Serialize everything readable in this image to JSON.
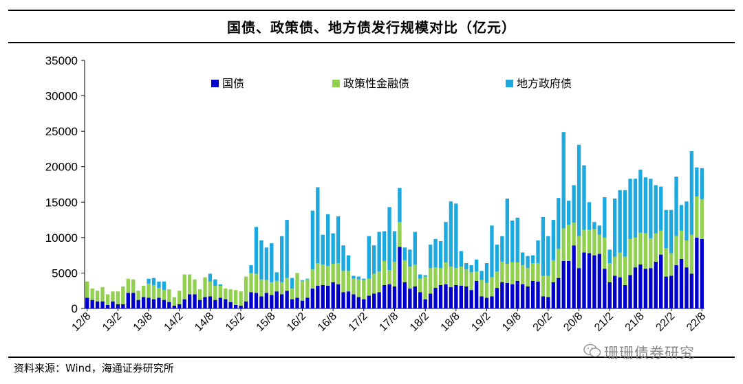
{
  "title": "国债、政策债、地方债发行规模对比（亿元）",
  "source": "资料来源：Wind，海通证券研究所",
  "watermark": "珊珊债券研究",
  "colors": {
    "guozhai": "#0000CC",
    "zhengce": "#92D050",
    "difang": "#1BA9E0"
  },
  "chart_data": {
    "type": "bar",
    "stacked": true,
    "title": "国债、政策债、地方债发行规模对比（亿元）",
    "xlabel": "",
    "ylabel": "",
    "ylim": [
      0,
      35000
    ],
    "yticks": [
      "0",
      "5000",
      "10000",
      "15000",
      "20000",
      "25000",
      "30000",
      "35000"
    ],
    "categories": [
      "12/8",
      "12/9",
      "12/10",
      "12/11",
      "12/12",
      "13/1",
      "13/2",
      "13/3",
      "13/4",
      "13/5",
      "13/6",
      "13/7",
      "13/8",
      "13/9",
      "13/10",
      "13/11",
      "13/12",
      "14/1",
      "14/2",
      "14/3",
      "14/4",
      "14/5",
      "14/6",
      "14/7",
      "14/8",
      "14/9",
      "14/10",
      "14/11",
      "14/12",
      "15/1",
      "15/2",
      "15/3",
      "15/4",
      "15/5",
      "15/6",
      "15/7",
      "15/8",
      "15/9",
      "15/10",
      "15/11",
      "15/12",
      "16/1",
      "16/2",
      "16/3",
      "16/4",
      "16/5",
      "16/6",
      "16/7",
      "16/8",
      "16/9",
      "16/10",
      "16/11",
      "16/12",
      "17/1",
      "17/2",
      "17/3",
      "17/4",
      "17/5",
      "17/6",
      "17/7",
      "17/8",
      "17/9",
      "17/10",
      "17/11",
      "17/12",
      "18/1",
      "18/2",
      "18/3",
      "18/4",
      "18/5",
      "18/6",
      "18/7",
      "18/8",
      "18/9",
      "18/10",
      "18/11",
      "18/12",
      "19/1",
      "19/2",
      "19/3",
      "19/4",
      "19/5",
      "19/6",
      "19/7",
      "19/8",
      "19/9",
      "19/10",
      "19/11",
      "19/12",
      "20/1",
      "20/2",
      "20/3",
      "20/4",
      "20/5",
      "20/6",
      "20/7",
      "20/8",
      "20/9",
      "20/10",
      "20/11",
      "20/12",
      "21/1",
      "21/2",
      "21/3",
      "21/4",
      "21/5",
      "21/6",
      "21/7",
      "21/8",
      "21/9",
      "21/10",
      "21/11",
      "21/12",
      "22/1",
      "22/2",
      "22/3",
      "22/4",
      "22/5",
      "22/6",
      "22/7",
      "22/8"
    ],
    "xtick_labels": [
      "12/8",
      "13/2",
      "13/8",
      "14/2",
      "14/8",
      "15/2",
      "15/8",
      "16/2",
      "16/8",
      "17/2",
      "17/8",
      "18/2",
      "18/8",
      "19/2",
      "19/8",
      "20/2",
      "20/8",
      "21/2",
      "21/8",
      "22/2",
      "22/8"
    ],
    "series": [
      {
        "name": "国债",
        "values": [
          1500,
          1200,
          1000,
          1000,
          500,
          1000,
          600,
          600,
          2200,
          2200,
          1200,
          1600,
          1500,
          1300,
          1500,
          1200,
          900,
          400,
          600,
          1300,
          2000,
          2000,
          1200,
          1600,
          1700,
          1200,
          1500,
          1300,
          900,
          500,
          400,
          1000,
          2300,
          2200,
          1700,
          2200,
          1900,
          2400,
          2000,
          2500,
          1300,
          1500,
          1100,
          1500,
          2800,
          3200,
          3300,
          3200,
          3700,
          3400,
          2300,
          2400,
          2000,
          1600,
          1300,
          1800,
          2100,
          2300,
          3300,
          3400,
          3100,
          8700,
          3700,
          2800,
          3100,
          2300,
          1300,
          2100,
          2900,
          3300,
          3400,
          3000,
          3300,
          3200,
          3100,
          2600,
          3900,
          1700,
          1500,
          1700,
          2900,
          3700,
          3600,
          3400,
          3900,
          3400,
          3100,
          3900,
          3800,
          1700,
          1600,
          3700,
          4300,
          6700,
          6700,
          8900,
          5700,
          7900,
          7800,
          7500,
          7700,
          5600,
          3700,
          4600,
          4400,
          3300,
          4700,
          5800,
          6200,
          5600,
          5700,
          6600,
          7600,
          4500,
          4600,
          6100,
          7000,
          5800,
          4900,
          10000,
          9800
        ]
      },
      {
        "name": "政策性金融债",
        "values": [
          2300,
          1600,
          1500,
          2000,
          1500,
          1400,
          1800,
          2500,
          2000,
          1900,
          1300,
          1600,
          2000,
          2000,
          1400,
          1400,
          1800,
          1200,
          1900,
          3500,
          2800,
          2100,
          1500,
          2800,
          2100,
          2000,
          1700,
          1500,
          1800,
          2100,
          2000,
          3500,
          2700,
          2700,
          2400,
          1800,
          1800,
          1500,
          1700,
          1800,
          1500,
          3500,
          2800,
          2600,
          2700,
          3200,
          2900,
          2800,
          2600,
          3000,
          3000,
          2900,
          2200,
          2500,
          2700,
          2400,
          2800,
          2900,
          3400,
          2000,
          3500,
          3500,
          3100,
          3100,
          3100,
          1900,
          3200,
          3600,
          2900,
          2400,
          3100,
          2900,
          2400,
          2700,
          2400,
          2500,
          1300,
          2300,
          2100,
          2700,
          2300,
          2900,
          2700,
          3100,
          2600,
          2700,
          2600,
          2500,
          2600,
          2900,
          3000,
          3100,
          4100,
          4600,
          5100,
          3200,
          4500,
          3200,
          3300,
          3700,
          2700,
          4400,
          2700,
          2700,
          3500,
          4000,
          5100,
          4200,
          4500,
          5000,
          4200,
          4000,
          3400,
          4000,
          3200,
          4100,
          4000,
          3800,
          5500,
          5800,
          5600
        ]
      },
      {
        "name": "地方政府债",
        "values": [
          0,
          0,
          0,
          0,
          0,
          0,
          0,
          0,
          0,
          0,
          0,
          0,
          700,
          1000,
          900,
          1200,
          0,
          0,
          0,
          0,
          0,
          0,
          0,
          0,
          1100,
          900,
          200,
          0,
          0,
          0,
          0,
          0,
          1100,
          6600,
          5500,
          4600,
          5500,
          1200,
          6500,
          8200,
          1500,
          0,
          100,
          100,
          8300,
          10700,
          4200,
          7300,
          4300,
          6600,
          3600,
          2200,
          400,
          400,
          200,
          6000,
          4000,
          5600,
          4200,
          8900,
          4300,
          4800,
          1800,
          2400,
          4600,
          600,
          200,
          3300,
          4000,
          3800,
          5700,
          9200,
          9100,
          2200,
          900,
          1000,
          1700,
          1300,
          2800,
          7300,
          3800,
          3600,
          9200,
          5900,
          6300,
          1800,
          1700,
          1100,
          3200,
          8300,
          5600,
          5700,
          7200,
          13600,
          3400,
          5300,
          12900,
          9100,
          3900,
          1000,
          1300,
          5700,
          1900,
          8200,
          8800,
          9400,
          8500,
          8300,
          8900,
          7900,
          8400,
          6800,
          6200,
          5400,
          6100,
          8400,
          3600,
          5500,
          11800,
          4100,
          4400
        ]
      }
    ]
  }
}
